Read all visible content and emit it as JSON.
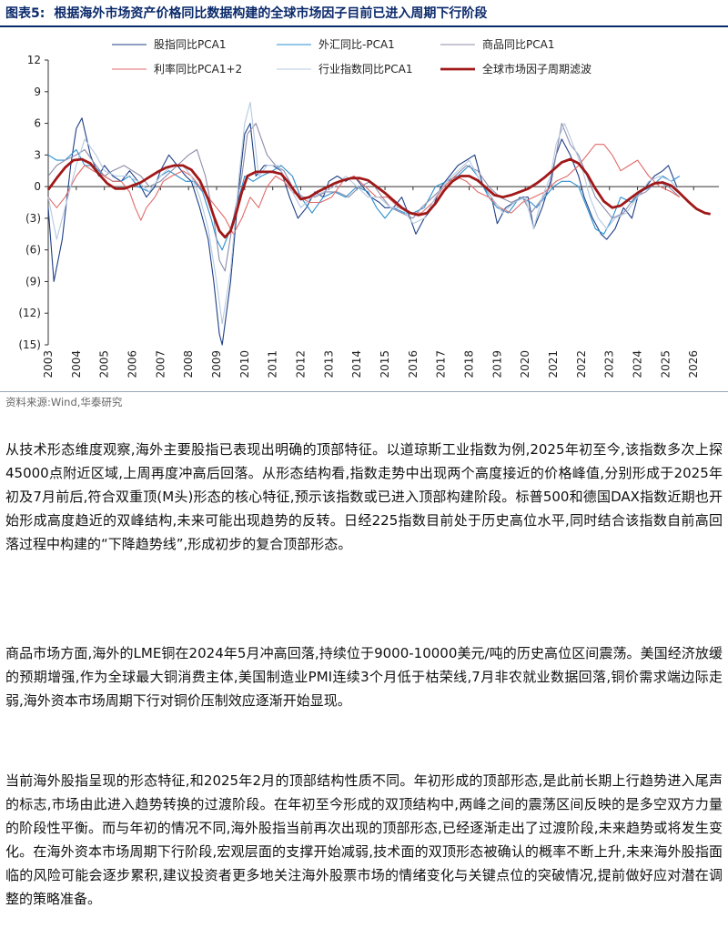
{
  "figure": {
    "label": "图表5:",
    "title": "根据海外市场资产价格同比数据构建的全球市场因子目前已进入周期下行阶段",
    "source": "资料来源:Wind,华泰研究"
  },
  "chart_data": {
    "type": "line",
    "ylim": [
      -15,
      12
    ],
    "yticks": [
      12,
      9,
      6,
      3,
      0,
      -3,
      -6,
      -9,
      -12,
      -15
    ],
    "ytick_labels": [
      "12",
      "9",
      "6",
      "3",
      "0",
      "(3)",
      "(6)",
      "(9)",
      "(12)",
      "(15)"
    ],
    "xlim": [
      2003,
      2026.9
    ],
    "xtick_labels": [
      "2003",
      "2004",
      "2005",
      "2006",
      "2007",
      "2008",
      "2009",
      "2010",
      "2011",
      "2012",
      "2013",
      "2014",
      "2015",
      "2016",
      "2017",
      "2018",
      "2019",
      "2020",
      "2021",
      "2022",
      "2023",
      "2024",
      "2025",
      "2026"
    ],
    "legend_position": "top",
    "series": [
      {
        "name": "股指同比PCA1",
        "color": "#1f3f86",
        "width": 1.1,
        "x": [
          2003.0,
          2003.2,
          2003.5,
          2003.8,
          2004.0,
          2004.2,
          2004.5,
          2004.8,
          2005.0,
          2005.3,
          2005.6,
          2005.9,
          2006.2,
          2006.5,
          2006.8,
          2007.0,
          2007.3,
          2007.6,
          2007.9,
          2008.1,
          2008.4,
          2008.7,
          2008.9,
          2009.1,
          2009.2,
          2009.5,
          2009.8,
          2010.0,
          2010.2,
          2010.4,
          2010.7,
          2011.0,
          2011.3,
          2011.6,
          2011.9,
          2012.2,
          2012.5,
          2012.8,
          2013.0,
          2013.3,
          2013.6,
          2013.9,
          2014.2,
          2014.5,
          2014.8,
          2015.0,
          2015.3,
          2015.6,
          2015.9,
          2016.1,
          2016.4,
          2016.7,
          2017.0,
          2017.3,
          2017.6,
          2017.9,
          2018.2,
          2018.5,
          2018.8,
          2019.0,
          2019.3,
          2019.6,
          2019.9,
          2020.1,
          2020.3,
          2020.6,
          2020.9,
          2021.1,
          2021.3,
          2021.6,
          2021.9,
          2022.1,
          2022.4,
          2022.7,
          2022.9,
          2023.2,
          2023.5,
          2023.8,
          2024.0,
          2024.3,
          2024.6,
          2024.9,
          2025.1,
          2025.4
        ],
        "y": [
          -2,
          -9,
          -5,
          2,
          5.5,
          6.5,
          3,
          1,
          2,
          1,
          0.5,
          1.5,
          0.5,
          -1,
          0,
          1.5,
          3,
          2,
          1,
          0.5,
          -2,
          -5,
          -9,
          -14,
          -15,
          -9,
          0,
          5,
          6,
          1,
          2,
          2,
          1.5,
          -1,
          -3,
          -2,
          -0.5,
          -1,
          0.5,
          1,
          0.5,
          1,
          0,
          -1,
          -1.5,
          -2,
          -2,
          -1,
          -3,
          -4.5,
          -3,
          -2,
          0,
          1,
          2,
          2.5,
          3,
          0,
          -1,
          -3.5,
          -2,
          -1.5,
          -1,
          -1,
          -4,
          -2,
          0.5,
          3,
          4.5,
          3,
          1,
          -1,
          -3,
          -4.5,
          -5,
          -4,
          -2,
          -3,
          -1,
          0,
          1,
          1.5,
          2,
          0
        ]
      },
      {
        "name": "外汇同比-PCA1",
        "color": "#2b8fd0",
        "width": 1.1,
        "x": [
          2003.0,
          2003.3,
          2003.6,
          2004.0,
          2004.3,
          2004.6,
          2005.0,
          2005.3,
          2005.6,
          2005.9,
          2006.2,
          2006.6,
          2007.0,
          2007.3,
          2007.6,
          2007.9,
          2008.2,
          2008.5,
          2008.8,
          2009.0,
          2009.2,
          2009.5,
          2009.8,
          2010.0,
          2010.3,
          2010.6,
          2011.0,
          2011.3,
          2011.7,
          2012.0,
          2012.4,
          2012.8,
          2013.2,
          2013.6,
          2014.0,
          2014.4,
          2014.7,
          2015.0,
          2015.3,
          2015.7,
          2016.0,
          2016.4,
          2016.8,
          2017.2,
          2017.6,
          2018.0,
          2018.3,
          2018.7,
          2019.0,
          2019.4,
          2019.8,
          2020.2,
          2020.4,
          2020.7,
          2021.0,
          2021.3,
          2021.6,
          2021.9,
          2022.2,
          2022.5,
          2022.8,
          2023.1,
          2023.4,
          2023.8,
          2024.1,
          2024.5,
          2024.9,
          2025.2,
          2025.5
        ],
        "y": [
          3,
          2.5,
          2.5,
          3.5,
          2,
          2,
          1,
          0.5,
          0.5,
          1,
          0,
          -0.5,
          1,
          1.5,
          1,
          0.5,
          0.5,
          -0.5,
          -3,
          -5,
          -6,
          -4,
          -1,
          1,
          0.5,
          1,
          1.5,
          2,
          1,
          -1,
          -2.5,
          -1,
          -0.5,
          -1,
          0,
          -0.5,
          -2,
          -3,
          -2,
          -2.5,
          -2.5,
          -2,
          0,
          0.5,
          1,
          2,
          1,
          -1,
          -2,
          -2.5,
          -1,
          -1.5,
          -2,
          -1,
          0,
          0.5,
          0.5,
          0,
          -2,
          -4,
          -4.5,
          -3,
          -1,
          -1.5,
          -0.5,
          0,
          1,
          0.5,
          1
        ]
      },
      {
        "name": "商品同比PCA1",
        "color": "#8c8cab",
        "width": 1.1,
        "x": [
          2003.0,
          2003.3,
          2003.6,
          2004.0,
          2004.3,
          2004.7,
          2005.0,
          2005.3,
          2005.7,
          2006.0,
          2006.3,
          2006.6,
          2007.0,
          2007.4,
          2007.8,
          2008.0,
          2008.3,
          2008.6,
          2008.9,
          2009.1,
          2009.3,
          2009.6,
          2009.9,
          2010.1,
          2010.4,
          2010.8,
          2011.1,
          2011.4,
          2011.8,
          2012.1,
          2012.5,
          2012.9,
          2013.3,
          2013.7,
          2014.1,
          2014.5,
          2014.9,
          2015.2,
          2015.6,
          2016.0,
          2016.3,
          2016.7,
          2017.1,
          2017.5,
          2017.9,
          2018.3,
          2018.7,
          2019.1,
          2019.5,
          2019.9,
          2020.2,
          2020.5,
          2020.9,
          2021.1,
          2021.3,
          2021.6,
          2021.9,
          2022.2,
          2022.5,
          2022.8,
          2023.1,
          2023.5,
          2023.9,
          2024.3,
          2024.7,
          2025.1,
          2025.5
        ],
        "y": [
          1,
          2,
          2.5,
          3,
          3.5,
          2,
          1,
          1.5,
          2,
          1.5,
          1,
          0,
          0.5,
          1.5,
          2.5,
          3,
          3.5,
          1,
          -3,
          -7,
          -8,
          -3,
          1,
          5,
          6,
          3,
          2,
          1.5,
          -0.5,
          -1,
          -1,
          -0.5,
          -0.5,
          -1,
          0,
          0.5,
          -1,
          -2,
          -2.5,
          -3,
          -2,
          -1,
          0,
          1,
          2,
          1.5,
          0,
          -1,
          -1.5,
          -1,
          -2.5,
          -1.5,
          0,
          3,
          6,
          4,
          3,
          1,
          -1,
          -2,
          -3,
          -2.5,
          -1,
          -0.5,
          0.5,
          0,
          -1
        ]
      },
      {
        "name": "利率同比PCA1+2",
        "color": "#e06a6a",
        "width": 1.1,
        "x": [
          2003.0,
          2003.3,
          2003.6,
          2004.0,
          2004.3,
          2004.6,
          2005.0,
          2005.3,
          2005.6,
          2005.9,
          2006.1,
          2006.3,
          2006.5,
          2006.8,
          2007.1,
          2007.4,
          2007.8,
          2008.1,
          2008.4,
          2008.7,
          2009.0,
          2009.3,
          2009.6,
          2009.9,
          2010.2,
          2010.5,
          2010.8,
          2011.1,
          2011.4,
          2011.7,
          2012.0,
          2012.3,
          2012.7,
          2013.1,
          2013.5,
          2013.9,
          2014.3,
          2014.7,
          2015.1,
          2015.5,
          2015.9,
          2016.3,
          2016.7,
          2017.1,
          2017.5,
          2017.9,
          2018.3,
          2018.7,
          2019.1,
          2019.5,
          2019.9,
          2020.3,
          2020.7,
          2021.1,
          2021.5,
          2021.9,
          2022.2,
          2022.5,
          2022.8,
          2023.1,
          2023.4,
          2023.7,
          2024.0,
          2024.4,
          2024.8,
          2025.2,
          2025.5
        ],
        "y": [
          -1,
          -2,
          -1,
          1,
          2,
          1.5,
          1,
          0.5,
          0.5,
          -0.5,
          -2,
          -3.2,
          -2,
          -1,
          0.5,
          1,
          1.5,
          1,
          0,
          -1,
          -2,
          -3,
          -4.5,
          -3,
          -1,
          -2,
          0,
          1,
          0.5,
          -0.5,
          -1,
          -1.5,
          -1.5,
          -1,
          0.5,
          1,
          0,
          -1,
          -1,
          -2,
          -2.5,
          -2.5,
          -1.5,
          0,
          1,
          0.5,
          -0.5,
          -1,
          -2,
          -2.5,
          -1.5,
          -1,
          -0.5,
          0.5,
          1,
          2,
          3,
          4,
          4,
          3,
          1.5,
          2,
          2.5,
          1,
          0,
          -0.5,
          -1
        ]
      },
      {
        "name": "行业指数同比PCA1",
        "color": "#b5c9e0",
        "width": 1.1,
        "x": [
          2003.0,
          2003.3,
          2003.6,
          2004.0,
          2004.3,
          2004.7,
          2005.0,
          2005.4,
          2005.8,
          2006.2,
          2006.6,
          2007.0,
          2007.4,
          2007.8,
          2008.1,
          2008.4,
          2008.7,
          2009.0,
          2009.2,
          2009.5,
          2009.8,
          2010.0,
          2010.2,
          2010.5,
          2010.8,
          2011.2,
          2011.6,
          2012.0,
          2012.4,
          2012.8,
          2013.2,
          2013.6,
          2014.0,
          2014.4,
          2014.8,
          2015.2,
          2015.6,
          2016.0,
          2016.4,
          2016.8,
          2017.2,
          2017.6,
          2018.0,
          2018.4,
          2018.8,
          2019.2,
          2019.6,
          2020.0,
          2020.3,
          2020.6,
          2020.9,
          2021.1,
          2021.4,
          2021.7,
          2022.0,
          2022.3,
          2022.6,
          2022.9,
          2023.2,
          2023.6,
          2024.0,
          2024.4,
          2024.8,
          2025.2,
          2025.5
        ],
        "y": [
          -1,
          -5,
          -2,
          2,
          4.5,
          3,
          1.5,
          1,
          1,
          0.5,
          -0.5,
          1,
          2,
          2,
          1,
          -1,
          -4,
          -9,
          -13,
          -8,
          1,
          6,
          8,
          1,
          2,
          2,
          0,
          -2,
          -1,
          -0.5,
          0,
          1,
          0,
          -1,
          -1,
          -2,
          -2,
          -3.5,
          -3,
          -1,
          0.5,
          1.5,
          2.5,
          0.5,
          -1,
          -2.5,
          -1.5,
          -1,
          -4,
          -1,
          1,
          4,
          6,
          4,
          2,
          -1,
          -3,
          -4,
          -3,
          -2.5,
          -1,
          0.5,
          1,
          0.5,
          -0.5
        ]
      },
      {
        "name": "全球市场因子周期滤波",
        "color": "#a01818",
        "width": 2.8,
        "x": [
          2003.0,
          2003.3,
          2003.6,
          2003.9,
          2004.2,
          2004.5,
          2004.8,
          2005.1,
          2005.4,
          2005.7,
          2006.0,
          2006.3,
          2006.6,
          2006.9,
          2007.2,
          2007.5,
          2007.8,
          2008.1,
          2008.4,
          2008.7,
          2008.9,
          2009.1,
          2009.3,
          2009.5,
          2009.7,
          2009.9,
          2010.1,
          2010.4,
          2010.7,
          2011.0,
          2011.3,
          2011.5,
          2011.8,
          2012.0,
          2012.3,
          2012.6,
          2012.9,
          2013.2,
          2013.5,
          2013.8,
          2014.1,
          2014.4,
          2014.7,
          2015.0,
          2015.3,
          2015.6,
          2015.9,
          2016.2,
          2016.5,
          2016.8,
          2017.1,
          2017.4,
          2017.7,
          2018.0,
          2018.3,
          2018.6,
          2018.9,
          2019.2,
          2019.5,
          2019.8,
          2020.1,
          2020.4,
          2020.7,
          2021.0,
          2021.3,
          2021.6,
          2021.9,
          2022.2,
          2022.5,
          2022.8,
          2023.1,
          2023.4,
          2023.7,
          2024.0,
          2024.3,
          2024.6,
          2024.9,
          2025.2,
          2025.5,
          2025.8,
          2026.1,
          2026.4,
          2026.6
        ],
        "y": [
          -0.3,
          0.8,
          1.8,
          2.5,
          2.6,
          2.2,
          1.2,
          0.3,
          -0.2,
          -0.2,
          0.1,
          0.4,
          0.9,
          1.4,
          1.8,
          2.0,
          2.0,
          1.6,
          0.6,
          -1.2,
          -2.8,
          -4.2,
          -4.8,
          -4.2,
          -2.5,
          -0.5,
          1.0,
          1.4,
          1.4,
          1.4,
          1.2,
          0.6,
          -0.5,
          -1.2,
          -1.0,
          -0.5,
          -0.1,
          0.3,
          0.6,
          0.8,
          0.8,
          0.6,
          0.0,
          -0.6,
          -1.3,
          -2.0,
          -2.5,
          -2.7,
          -2.5,
          -1.6,
          -0.4,
          0.5,
          1.0,
          1.0,
          0.6,
          -0.1,
          -0.8,
          -1.0,
          -0.8,
          -0.5,
          -0.2,
          0.3,
          0.9,
          1.6,
          2.3,
          2.6,
          2.2,
          1.2,
          -0.2,
          -1.4,
          -2.0,
          -1.8,
          -1.2,
          -0.6,
          -0.1,
          0.3,
          0.4,
          0.1,
          -0.6,
          -1.4,
          -2.1,
          -2.5,
          -2.6
        ]
      }
    ]
  },
  "body": {
    "p1": "从技术形态维度观察,海外主要股指已表现出明确的顶部特征。以道琼斯工业指数为例,2025年初至今,该指数多次上探45000点附近区域,上周再度冲高后回落。从形态结构看,指数走势中出现两个高度接近的价格峰值,分别形成于2025年初及7月前后,符合双重顶(M头)形态的核心特征,预示该指数或已进入顶部构建阶段。标普500和德国DAX指数近期也开始形成高度趋近的双峰结构,未来可能出现趋势的反转。日经225指数目前处于历史高位水平,同时结合该指数自前高回落过程中构建的“下降趋势线”,形成初步的复合顶部形态。",
    "p2": "商品市场方面,海外的LME铜在2024年5月冲高回落,持续位于9000-10000美元/吨的历史高位区间震荡。美国经济放缓的预期增强,作为全球最大铜消费主体,美国制造业PMI连续3个月低于枯荣线,7月非农就业数据回落,铜价需求端边际走弱,海外资本市场周期下行对铜价压制效应逐渐开始显现。",
    "p3": "当前海外股指呈现的形态特征,和2025年2月的顶部结构性质不同。年初形成的顶部形态,是此前长期上行趋势进入尾声的标志,市场由此进入趋势转换的过渡阶段。在年初至今形成的双顶结构中,两峰之间的震荡区间反映的是多空双方力量的阶段性平衡。而与年初的情况不同,海外股指当前再次出现的顶部形态,已经逐渐走出了过渡阶段,未来趋势或将发生变化。在海外资本市场周期下行阶段,宏观层面的支撑开始减弱,技术面的双顶形态被确认的概率不断上升,未来海外股指面临的风险可能会逐步累积,建议投资者更多地关注海外股票市场的情绪变化与关键点位的突破情况,提前做好应对潜在调整的策略准备。"
  }
}
